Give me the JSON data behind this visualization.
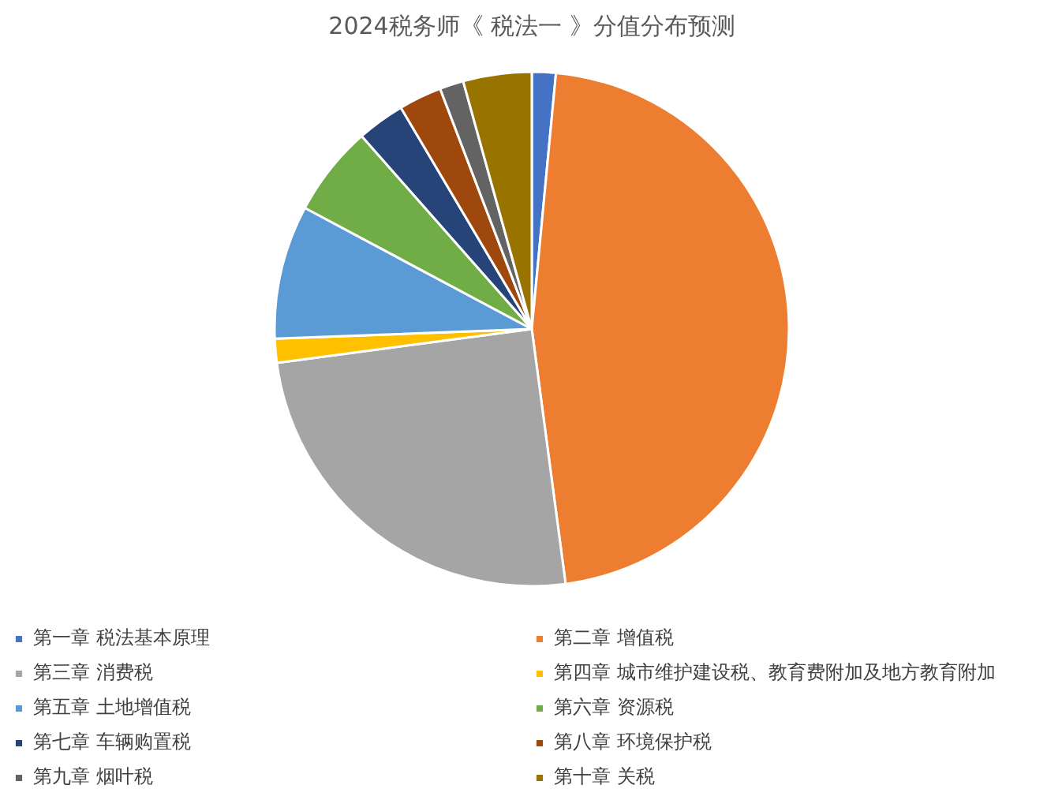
{
  "chart_data": {
    "type": "pie",
    "title": "2024税务师《 税法一 》分值分布预测",
    "categories": [
      "第一章 税法基本原理",
      "第二章 增值税",
      "第三章 消费税",
      "第四章 城市维护建设税、教育费附加及地方教育附加",
      "第五章 土地增值税",
      "第六章 资源税",
      "第七章 车辆购置税",
      "第八章 环境保护税",
      "第九章 烟叶税",
      "第十章 关税"
    ],
    "values": [
      1.5,
      46.4,
      25,
      1.5,
      8.4,
      5.7,
      3,
      2.7,
      1.5,
      4.3
    ],
    "colors": [
      "#4472c4",
      "#ed7d31",
      "#a5a5a5",
      "#ffc000",
      "#5b9bd5",
      "#70ad47",
      "#264478",
      "#9e480e",
      "#636363",
      "#997300"
    ],
    "legend": "bottom"
  }
}
